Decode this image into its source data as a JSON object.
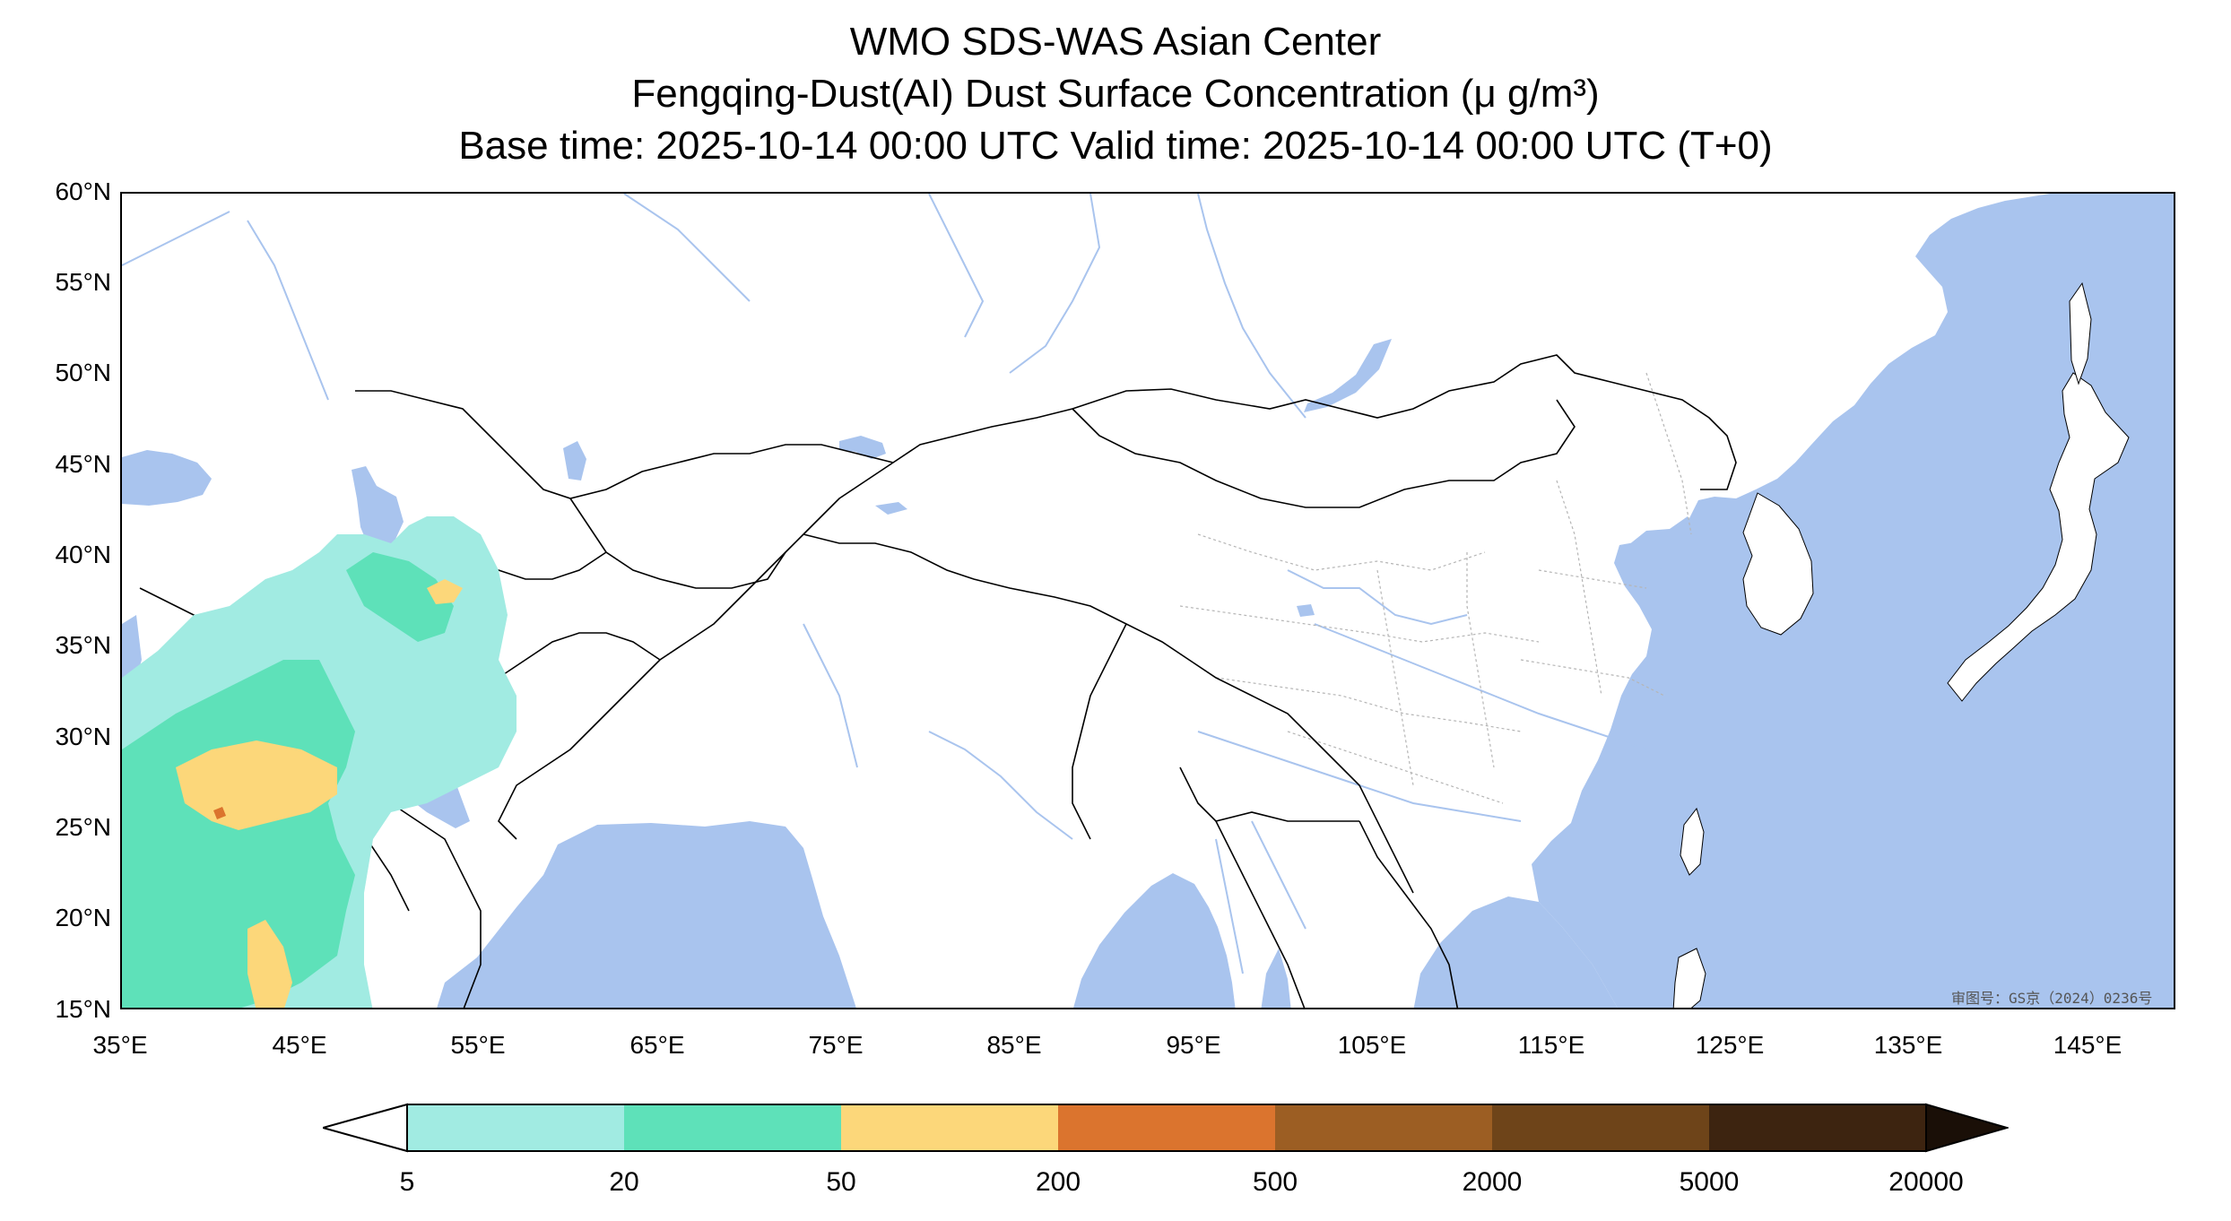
{
  "titles": {
    "line1": "WMO SDS-WAS Asian Center",
    "line2": "Fengqing-Dust(AI) Dust Surface Concentration (μ g/m³)",
    "line3": "Base time: 2025-10-14 00:00 UTC Valid time: 2025-10-14 00:00 UTC (T+0)"
  },
  "axes": {
    "lat_labels": [
      "60°N",
      "55°N",
      "50°N",
      "45°N",
      "40°N",
      "35°N",
      "30°N",
      "25°N",
      "20°N",
      "15°N"
    ],
    "lon_labels": [
      "35°E",
      "45°E",
      "55°E",
      "65°E",
      "75°E",
      "85°E",
      "95°E",
      "105°E",
      "115°E",
      "125°E",
      "135°E",
      "145°E"
    ],
    "lat_range": [
      15,
      60
    ],
    "lon_range": [
      35,
      150
    ]
  },
  "colorbar": {
    "labels": [
      "5",
      "20",
      "50",
      "200",
      "500",
      "2000",
      "5000",
      "20000"
    ],
    "colors": [
      "#a1ebe2",
      "#5ee1b9",
      "#fcd77a",
      "#db742e",
      "#9c5e23",
      "#6e4419",
      "#3d2410",
      "#1a0f07"
    ]
  },
  "colors": {
    "ocean": "#a9c4ee",
    "land": "#ffffff",
    "river": "#a9c4ee",
    "border": "#000000",
    "province": "#b5b5b5"
  },
  "watermark": "审图号：GS京（2024）0236号"
}
